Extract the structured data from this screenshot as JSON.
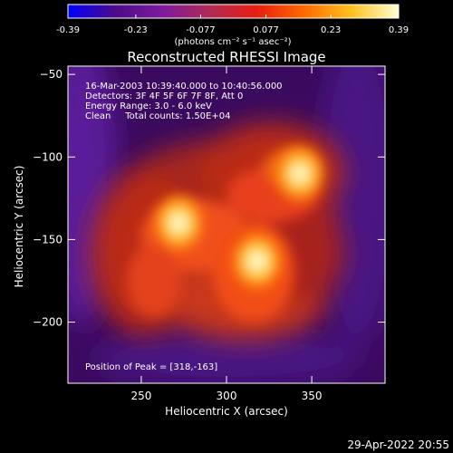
{
  "colorbar": {
    "tick_labels": [
      "-0.39",
      "-0.23",
      "-0.077",
      "0.077",
      "0.23",
      "0.39"
    ],
    "tick_values": [
      -0.39,
      -0.23,
      -0.077,
      0.077,
      0.23,
      0.39
    ],
    "range": [
      -0.39,
      0.39
    ],
    "unit_label": "(photons cm⁻² s⁻¹ asec⁻²)",
    "colors": [
      "#0000ff",
      "#4b0b8a",
      "#7f1a9e",
      "#b02a55",
      "#e81e0f",
      "#ff6a00",
      "#ffc21f",
      "#ffffd4"
    ]
  },
  "chart_data": {
    "type": "heatmap",
    "title": "Reconstructed RHESSI Image",
    "xlabel": "Heliocentric X (arcsec)",
    "ylabel": "Heliocentric Y (arcsec)",
    "xlim": [
      207,
      393
    ],
    "ylim": [
      -237,
      -45
    ],
    "xticks": [
      250,
      300,
      350
    ],
    "yticks": [
      -50,
      -100,
      -150,
      -200
    ],
    "annotations": [
      "16-Mar-2003 10:39:40.000 to 10:40:56.000",
      "Detectors: 3F 4F 5F 6F 7F 8F, Att 0",
      "Energy Range: 3.0 - 6.0 keV",
      "Clean     Total counts: 1.50E+04"
    ],
    "peak_label": "Position of Peak = [318,-163]",
    "peak": [
      318,
      -163
    ],
    "sources": [
      {
        "x": 318,
        "y": -163,
        "intensity": 0.39
      },
      {
        "x": 272,
        "y": -140,
        "intensity": 0.36
      },
      {
        "x": 343,
        "y": -110,
        "intensity": 0.33
      }
    ]
  },
  "footer": {
    "date": "29-Apr-2022 20:55"
  }
}
